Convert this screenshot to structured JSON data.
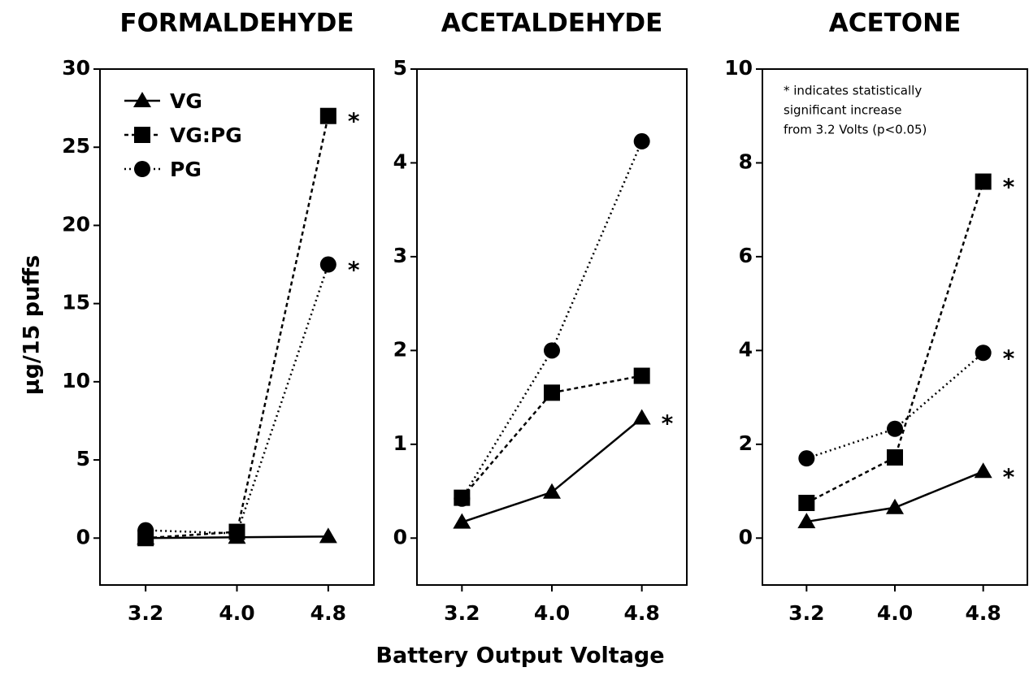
{
  "chart_data": [
    {
      "type": "line",
      "title": "FORMALDEHYDE",
      "ylabel": "µg/15 puffs",
      "categories": [
        "3.2",
        "4.0",
        "4.8"
      ],
      "ylim": [
        -3,
        30
      ],
      "yticks": [
        0,
        5,
        10,
        15,
        20,
        25,
        30
      ],
      "legend": "upper left",
      "series": [
        {
          "name": "VG",
          "color": "#000000",
          "marker": "triangle",
          "linestyle": "solid",
          "values": [
            0,
            0.05,
            0.1
          ],
          "significance": [
            null,
            null,
            null
          ]
        },
        {
          "name": "VG:PG",
          "color": "#000000",
          "marker": "square",
          "linestyle": "dashed",
          "values": [
            0,
            0.4,
            27
          ],
          "significance": [
            null,
            null,
            "*"
          ]
        },
        {
          "name": "PG",
          "color": "#000000",
          "marker": "circle",
          "linestyle": "dotted",
          "values": [
            0.5,
            0.3,
            17.5
          ],
          "significance": [
            null,
            null,
            "*"
          ]
        }
      ]
    },
    {
      "type": "line",
      "title": "ACETALDEHYDE",
      "xlabel": "Battery Output Voltage",
      "categories": [
        "3.2",
        "4.0",
        "4.8"
      ],
      "ylim": [
        -0.5,
        5
      ],
      "yticks": [
        0,
        1,
        2,
        3,
        4,
        5
      ],
      "series": [
        {
          "name": "VG",
          "color": "#000000",
          "marker": "triangle",
          "linestyle": "solid",
          "values": [
            0.17,
            0.49,
            1.28
          ],
          "significance": [
            null,
            null,
            "*"
          ]
        },
        {
          "name": "VG:PG",
          "color": "#000000",
          "marker": "square",
          "linestyle": "dashed",
          "values": [
            0.43,
            1.55,
            1.73
          ],
          "significance": [
            null,
            null,
            null
          ]
        },
        {
          "name": "PG",
          "color": "#000000",
          "marker": "circle",
          "linestyle": "dotted",
          "values": [
            0.42,
            2.0,
            4.23
          ],
          "significance": [
            null,
            null,
            null
          ]
        }
      ]
    },
    {
      "type": "line",
      "title": "ACETONE",
      "note": [
        "* indicates statistically",
        "significant increase",
        "from 3.2 Volts (p<0.05)"
      ],
      "categories": [
        "3.2",
        "4.0",
        "4.8"
      ],
      "ylim": [
        -1,
        10
      ],
      "yticks": [
        0,
        2,
        4,
        6,
        8,
        10
      ],
      "series": [
        {
          "name": "VG",
          "color": "#000000",
          "marker": "triangle",
          "linestyle": "solid",
          "values": [
            0.35,
            0.65,
            1.42
          ],
          "significance": [
            null,
            null,
            "*"
          ]
        },
        {
          "name": "VG:PG",
          "color": "#000000",
          "marker": "square",
          "linestyle": "dashed",
          "values": [
            0.75,
            1.72,
            7.6
          ],
          "significance": [
            null,
            null,
            "*"
          ]
        },
        {
          "name": "PG",
          "color": "#000000",
          "marker": "circle",
          "linestyle": "dotted",
          "values": [
            1.7,
            2.33,
            3.95
          ],
          "significance": [
            null,
            null,
            "*"
          ]
        }
      ]
    }
  ]
}
